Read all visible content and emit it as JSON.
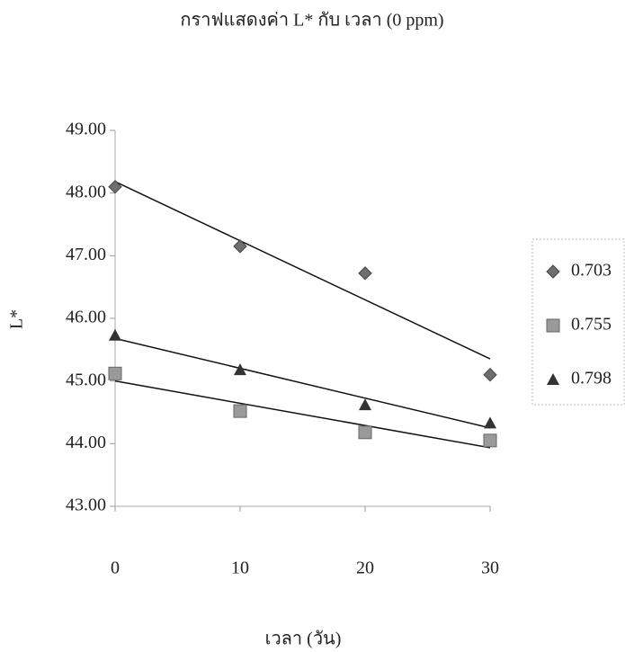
{
  "chart_data": {
    "type": "scatter",
    "title": "กราฟแสดงค่า L* กับ เวลา (0 ppm)",
    "x_label": "เวลา (วัน)",
    "y_label": "L*",
    "x": [
      0,
      10,
      20,
      30
    ],
    "series": [
      {
        "name": "0.703",
        "color": "#6e6e6e",
        "marker": "diamond",
        "values": [
          48.1,
          47.15,
          46.72,
          45.1
        ]
      },
      {
        "name": "0.755",
        "color": "#9a9a9a",
        "marker": "square",
        "values": [
          45.12,
          44.52,
          44.18,
          44.05
        ]
      },
      {
        "name": "0.798",
        "color": "#333333",
        "marker": "triangle",
        "values": [
          45.73,
          45.18,
          44.62,
          44.33
        ]
      }
    ],
    "xlim": [
      0,
      30
    ],
    "xticks": [
      0,
      10,
      20,
      30
    ],
    "ylim": [
      43,
      49
    ],
    "yticks": [
      {
        "value": 43,
        "label": "43.00"
      },
      {
        "value": 44,
        "label": "44.00"
      },
      {
        "value": 45,
        "label": "45.00"
      },
      {
        "value": 46,
        "label": "46.00"
      },
      {
        "value": 47,
        "label": "47.00"
      },
      {
        "value": 48,
        "label": "48.00"
      },
      {
        "value": 49,
        "label": "49.00"
      }
    ],
    "trendline": "linear",
    "legend": "right"
  }
}
